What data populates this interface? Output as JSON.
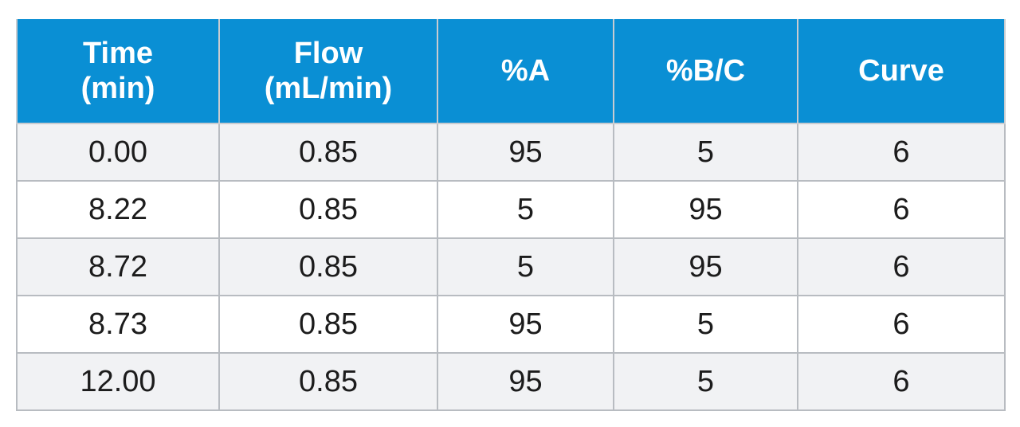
{
  "table": {
    "headers": [
      "Time\n(min)",
      "Flow\n(mL/min)",
      "%A",
      "%B/C",
      "Curve"
    ],
    "rows": [
      [
        "0.00",
        "0.85",
        "95",
        "5",
        "6"
      ],
      [
        "8.22",
        "0.85",
        "5",
        "95",
        "6"
      ],
      [
        "8.72",
        "0.85",
        "5",
        "95",
        "6"
      ],
      [
        "8.73",
        "0.85",
        "95",
        "5",
        "6"
      ],
      [
        "12.00",
        "0.85",
        "95",
        "5",
        "6"
      ]
    ]
  },
  "colors": {
    "header_background": "#0a8fd4",
    "header_text": "#ffffff",
    "odd_row_background": "#f1f2f4",
    "even_row_background": "#ffffff"
  }
}
